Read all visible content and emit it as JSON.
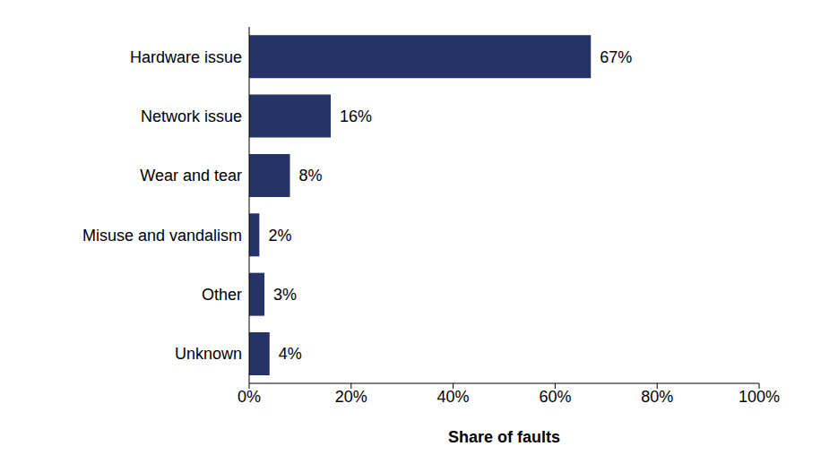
{
  "chart_data": {
    "type": "bar",
    "orientation": "horizontal",
    "x_label": "Share of faults",
    "categories": [
      "Hardware issue",
      "Network issue",
      "Wear and tear",
      "Misuse and vandalism",
      "Other",
      "Unknown"
    ],
    "values": [
      67,
      16,
      8,
      2,
      3,
      4
    ],
    "value_labels": [
      "67%",
      "16%",
      "8%",
      "2%",
      "3%",
      "4%"
    ],
    "data_labels": true,
    "color": "#263366",
    "xlim": [
      0,
      100
    ],
    "xticks": [
      {
        "value": 0,
        "label": "0%"
      },
      {
        "value": 20,
        "label": "20%"
      },
      {
        "value": 40,
        "label": "40%"
      },
      {
        "value": 60,
        "label": "60%"
      },
      {
        "value": 80,
        "label": "80%"
      },
      {
        "value": 100,
        "label": "100%"
      }
    ],
    "grid": false
  }
}
